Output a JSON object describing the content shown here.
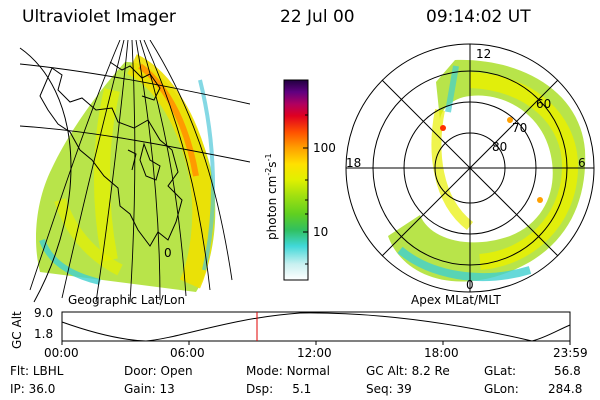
{
  "header": {
    "title": "Ultraviolet Imager",
    "date": "22 Jul 00",
    "time": "09:14:02 UT"
  },
  "colorbar": {
    "unit": "photon cm",
    "unit_sup1": "-2",
    "unit_mid": "s",
    "unit_sup2": "-1",
    "tick_100": "100",
    "tick_10": "10",
    "colors": [
      "#ffffff",
      "#c8f0f0",
      "#40d8d8",
      "#30c060",
      "#60d020",
      "#a0e010",
      "#e0f000",
      "#ffe000",
      "#ffa000",
      "#ff5000",
      "#e00020",
      "#b00060",
      "#600080",
      "#200040"
    ]
  },
  "geo_map": {
    "label": "Geographic Lat/Lon",
    "meridian_label": "0"
  },
  "polar_map": {
    "label": "Apex MLat/MLT",
    "mlt_top": "12",
    "mlt_left": "18",
    "mlt_right": "6",
    "mlt_bottom": "0",
    "lat_60": "60",
    "lat_70": "70",
    "lat_80": "80"
  },
  "altitude_plot": {
    "ylabel": "GC Alt",
    "ytick_top": "9.0",
    "ytick_bottom": "1.8",
    "xticks": [
      "00:00",
      "06:00",
      "12:00",
      "18:00",
      "23:59"
    ],
    "marker_time": "09:14"
  },
  "info": {
    "flt_label": "Flt:",
    "flt_value": "LBHL",
    "door_label": "Door:",
    "door_value": "Open",
    "mode_label": "Mode:",
    "mode_value": "Normal",
    "gcalt_label": "GC Alt:",
    "gcalt_value": "8.2 Re",
    "glat_label": "GLat:",
    "glat_value": "56.8",
    "ip_label": "IP:",
    "ip_value": "36.0",
    "gain_label": "Gain:",
    "gain_value": "13",
    "dsp_label": "Dsp:",
    "dsp_value": "5.1",
    "seq_label": "Seq:",
    "seq_value": "39",
    "glon_label": "GLon:",
    "glon_value": "284.8"
  }
}
